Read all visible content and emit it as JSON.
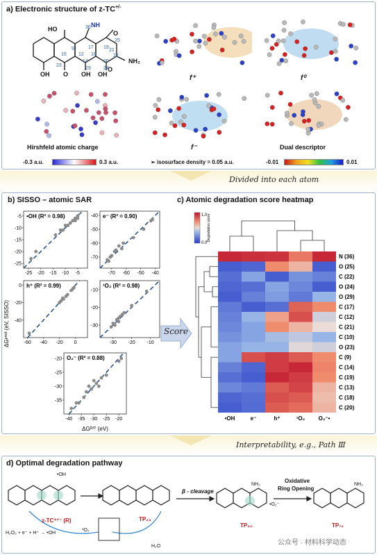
{
  "panel_a": {
    "title": "a) Electronic structure of z-TC",
    "title_sup": "+/-",
    "captions": [
      "Hirshfeld atomic charge",
      "f⁻",
      "Dual descriptor"
    ],
    "f_plus": "f⁺",
    "f_zero": "f⁰",
    "charge_scale": {
      "min": "-0.3 a.u.",
      "max": "0.3 a.u."
    },
    "isosurface_note": "isosurface density = 0.05 a.u.",
    "dual_scale": {
      "min": "-0.01",
      "max": "0.01"
    },
    "atom_numbers": [
      "36",
      "25",
      "21",
      "17",
      "19",
      "12",
      "10",
      "18",
      "22",
      "14",
      "20",
      "23",
      "29",
      "24",
      "9"
    ],
    "groups": [
      "HO",
      "NH",
      "O",
      "NH₂",
      "OH",
      "O",
      "OH",
      "OH",
      "O"
    ]
  },
  "banner1": "Divided into each atom",
  "panel_b": {
    "title": "b) SISSO – atomic SAR",
    "ylabel": "ΔGᵖʳᵉᵈ (eV, SISSO)",
    "xlabel": "ΔGᴰᶠᵀ (eV)"
  },
  "score_label": "Score",
  "panel_c": {
    "title": "c) Atomic degradation score heatmap",
    "legend_title": "Degradation score",
    "legend_max": "1.0",
    "legend_min": "0.0"
  },
  "banner2": "Interpretability, e.g., Path Ⅲ",
  "panel_d": {
    "title": "d) Optimal degradation pathway",
    "beta": "β - cleavage",
    "oxidative": "Oxidative",
    "ring_opening": "Ring Opening",
    "compound1": "z-TC⁺ᐟ⁻ (R)",
    "tp23": "TP₂₃",
    "tp32": "TP₃₂",
    "tp72": "TP₇₂",
    "reagents": "H₂O₂ + e⁻ + H⁺ → •OH",
    "singlet_o2": "¹O₂",
    "water": "H₂O",
    "oh_radical": "•OH",
    "superoxide": "•O₂⁻",
    "nh2": "NH₂",
    "watermark": "公众号 · 材料科学动态"
  },
  "chart_data": [
    {
      "type": "scatter",
      "title": "•OH (R² = 0.98)",
      "xlim": [
        -27,
        -1
      ],
      "ylim": [
        -27,
        -3
      ],
      "xticks": [
        "-25",
        "-20",
        "-15",
        "-10",
        "-5"
      ],
      "yticks": [
        "-5",
        "-10",
        "-15",
        "-20",
        "-25"
      ],
      "x": [
        -24,
        -22,
        -14,
        -12,
        -11,
        -10,
        -9,
        -8,
        -7,
        -6,
        -6,
        -5,
        -5
      ],
      "y": [
        -23,
        -20,
        -13,
        -11,
        -11,
        -9,
        -9,
        -8,
        -7,
        -6,
        -7,
        -5,
        -6
      ]
    },
    {
      "type": "scatter",
      "title": "e⁻ (R² = 0.90)",
      "xlim": [
        -78,
        -37
      ],
      "ylim": [
        -78,
        -37
      ],
      "xticks": [
        "-70",
        "-60",
        "-50",
        "-40"
      ],
      "yticks": [
        "-40",
        "-50",
        "-60",
        "-70"
      ],
      "x": [
        -73,
        -72,
        -71,
        -70,
        -68,
        -67,
        -65,
        -63,
        -62,
        -55,
        -48,
        -43,
        -42
      ],
      "y": [
        -72,
        -73,
        -70,
        -69,
        -66,
        -65,
        -62,
        -64,
        -60,
        -56,
        -50,
        -44,
        -43
      ]
    },
    {
      "type": "scatter",
      "title": "h⁺ (R² = 0.99)",
      "xlim": [
        -65,
        15
      ],
      "ylim": [
        -60,
        5
      ],
      "xticks": [
        "-60",
        "-40",
        "-20",
        "0"
      ],
      "yticks": [
        "0",
        "-20",
        "-40"
      ],
      "x": [
        -58,
        -20,
        -18,
        -16,
        -15,
        -12,
        -10,
        -5,
        -3,
        -2
      ],
      "y": [
        -55,
        -20,
        -18,
        -15,
        -16,
        -13,
        -11,
        -6,
        -4,
        -3
      ]
    },
    {
      "type": "scatter",
      "title": "¹O₂ (R² = 0.98)",
      "xlim": [
        -37,
        -5
      ],
      "ylim": [
        -37,
        -5
      ],
      "xticks": [
        "-30",
        "-20",
        "-10"
      ],
      "yticks": [
        "-10",
        "-20",
        "-30"
      ],
      "x": [
        -31,
        -30,
        -29,
        -28,
        -27,
        -27,
        -26,
        -25,
        -24,
        -20,
        -12
      ],
      "y": [
        -31,
        -29,
        -30,
        -27,
        -28,
        -26,
        -25,
        -24,
        -23,
        -19,
        -11
      ]
    },
    {
      "type": "scatter",
      "title": "O₂⁻ (R² = 0.88)",
      "xlim": [
        -42,
        -17
      ],
      "ylim": [
        -40,
        -18
      ],
      "xticks": [
        "-40",
        "-35",
        "-30",
        "-25",
        "-20"
      ],
      "yticks": [
        "-20",
        "-25",
        "-30",
        "-35"
      ],
      "x": [
        -39,
        -37,
        -36,
        -34,
        -33,
        -32,
        -31,
        -30,
        -29,
        -28,
        -27,
        -25,
        -20,
        -19
      ],
      "y": [
        -38,
        -36,
        -36,
        -34,
        -32,
        -30,
        -31,
        -28,
        -29,
        -30,
        -27,
        -26,
        -21,
        -20
      ]
    },
    {
      "type": "heatmap",
      "columns": [
        "•OH",
        "e⁻",
        "h⁺",
        "¹O₂",
        "O₂⁻•"
      ],
      "rows": [
        "N (36)",
        "O (25)",
        "C (22)",
        "O (24)",
        "O (29)",
        "C (17)",
        "C (12)",
        "C (21)",
        "C (10)",
        "O (23)",
        "C (9)",
        "C (14)",
        "C (19)",
        "C (13)",
        "C (18)",
        "C (20)"
      ],
      "values": [
        [
          0.95,
          0.93,
          0.92,
          0.75,
          0.95
        ],
        [
          0.1,
          0.12,
          0.7,
          0.6,
          0.1
        ],
        [
          0.15,
          0.3,
          0.1,
          0.25,
          0.2
        ],
        [
          0.12,
          0.15,
          0.3,
          0.22,
          0.1
        ],
        [
          0.1,
          0.2,
          0.28,
          0.18,
          0.35
        ],
        [
          0.18,
          0.1,
          0.15,
          0.8,
          0.7
        ],
        [
          0.2,
          0.35,
          0.65,
          0.85,
          0.45
        ],
        [
          0.22,
          0.3,
          0.7,
          0.6,
          0.5
        ],
        [
          0.25,
          0.3,
          0.38,
          0.42,
          0.35
        ],
        [
          0.3,
          0.35,
          0.35,
          0.48,
          0.45
        ],
        [
          0.3,
          0.85,
          0.9,
          0.82,
          0.7
        ],
        [
          0.2,
          0.12,
          0.9,
          0.95,
          0.72
        ],
        [
          0.15,
          0.1,
          0.95,
          0.9,
          0.7
        ],
        [
          0.22,
          0.18,
          0.82,
          0.88,
          0.6
        ],
        [
          0.12,
          0.15,
          0.85,
          0.82,
          0.58
        ],
        [
          0.1,
          0.14,
          0.82,
          0.78,
          0.6
        ]
      ],
      "colorbar": {
        "min": 0.0,
        "max": 1.0
      }
    }
  ]
}
